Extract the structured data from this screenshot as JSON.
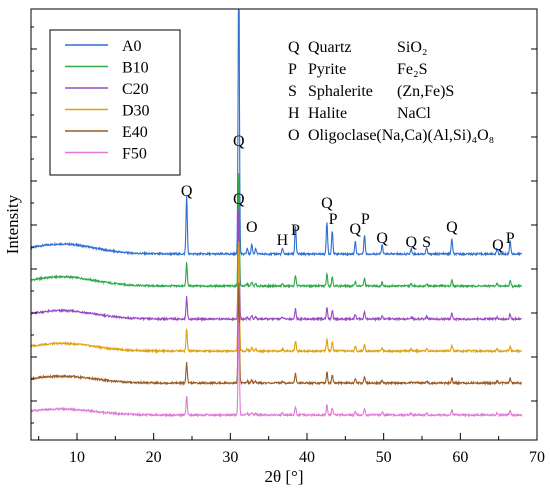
{
  "chart_data": {
    "type": "line",
    "title": "",
    "xlabel": "2θ [°]",
    "ylabel": "Intensity",
    "xlim": [
      4,
      70
    ],
    "x_ticks": [
      10,
      20,
      30,
      40,
      50,
      60,
      70
    ],
    "x_tick_labels": [
      "10",
      "20",
      "30",
      "40",
      "50",
      "60",
      "70"
    ],
    "y_ticks_labeled": false,
    "grid": false,
    "legend_placement": "top-left",
    "series": [
      {
        "name": "A0",
        "color": "#2e6fd0"
      },
      {
        "name": "B10",
        "color": "#2ea84a"
      },
      {
        "name": "C20",
        "color": "#9848c2"
      },
      {
        "name": "D30",
        "color": "#e0a010"
      },
      {
        "name": "E40",
        "color": "#9a5a22"
      },
      {
        "name": "F50",
        "color": "#e07ad6"
      }
    ],
    "peaks": [
      {
        "x": 24.3,
        "h": 85
      },
      {
        "x": 31.1,
        "h": 420
      },
      {
        "x": 32.2,
        "h": 8
      },
      {
        "x": 32.8,
        "h": 14
      },
      {
        "x": 33.3,
        "h": 8
      },
      {
        "x": 36.8,
        "h": 8
      },
      {
        "x": 38.5,
        "h": 40
      },
      {
        "x": 42.6,
        "h": 46
      },
      {
        "x": 43.3,
        "h": 34
      },
      {
        "x": 46.3,
        "h": 18
      },
      {
        "x": 47.5,
        "h": 28
      },
      {
        "x": 49.8,
        "h": 13
      },
      {
        "x": 53.6,
        "h": 8
      },
      {
        "x": 55.6,
        "h": 9
      },
      {
        "x": 58.9,
        "h": 22
      },
      {
        "x": 64.8,
        "h": 8
      },
      {
        "x": 66.5,
        "h": 20
      }
    ],
    "peak_labels": [
      {
        "text": "Q",
        "x": 24.3
      },
      {
        "text": "Q",
        "x": 31.1
      },
      {
        "text": "O",
        "x": 32.8
      },
      {
        "text": "H",
        "x": 36.8
      },
      {
        "text": "P",
        "x": 38.5
      },
      {
        "text": "Q",
        "x": 42.6
      },
      {
        "text": "P",
        "x": 43.4
      },
      {
        "text": "Q",
        "x": 46.3
      },
      {
        "text": "P",
        "x": 47.6
      },
      {
        "text": "Q",
        "x": 49.8
      },
      {
        "text": "Q",
        "x": 53.6
      },
      {
        "text": "S",
        "x": 55.6
      },
      {
        "text": "Q",
        "x": 58.9
      },
      {
        "text": "Q",
        "x": 64.9
      },
      {
        "text": "P",
        "x": 66.5
      }
    ],
    "annotations": [
      {
        "symbol": "Q",
        "name": "Quartz",
        "formula": "SiO₂"
      },
      {
        "symbol": "P",
        "name": "Pyrite",
        "formula": "Fe₂S"
      },
      {
        "symbol": "S",
        "name": "Sphalerite",
        "formula": "(Zn,Fe)S"
      },
      {
        "symbol": "H",
        "name": "Halite",
        "formula": "NaCl"
      },
      {
        "symbol": "O",
        "name": "Oligoclase(Na,Ca)(Al,Si)₄O₈",
        "formula": ""
      }
    ]
  }
}
